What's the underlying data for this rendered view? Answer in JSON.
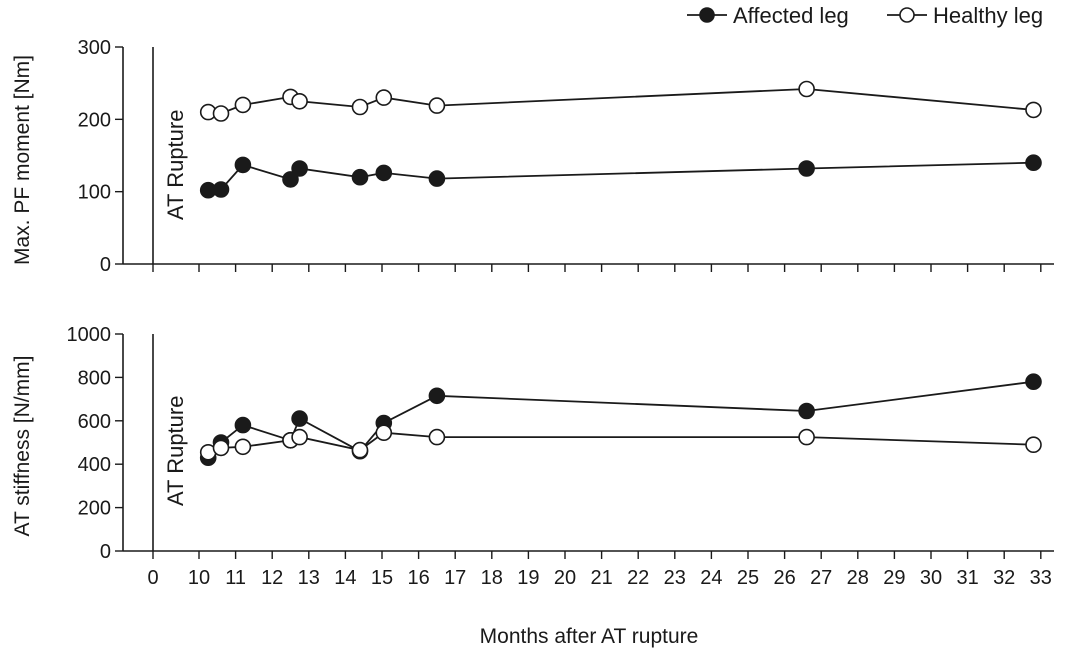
{
  "chart_data": [
    {
      "type": "line",
      "panel": "top",
      "ylabel": "Max. PF moment [Nm]",
      "xlabel": "Months after AT rupture",
      "ylim": [
        0,
        300
      ],
      "yticks": [
        "0",
        "100",
        "200",
        "300"
      ],
      "xticks": [
        "0",
        "10",
        "11",
        "12",
        "13",
        "14",
        "15",
        "16",
        "17",
        "18",
        "19",
        "20",
        "21",
        "22",
        "23",
        "24",
        "25",
        "26",
        "27",
        "28",
        "29",
        "30",
        "31",
        "32",
        "33"
      ],
      "annotation": "AT Rupture",
      "series": [
        {
          "name": "Affected leg",
          "marker": "filled",
          "x": [
            10.25,
            10.6,
            11.2,
            12.5,
            12.75,
            14.4,
            15.05,
            16.5,
            26.6,
            32.8
          ],
          "values": [
            102,
            103,
            137,
            117,
            132,
            120,
            126,
            118,
            132,
            140
          ]
        },
        {
          "name": "Healthy leg",
          "marker": "open",
          "x": [
            10.25,
            10.6,
            11.2,
            12.5,
            12.75,
            14.4,
            15.05,
            16.5,
            26.6,
            32.8
          ],
          "values": [
            210,
            208,
            220,
            231,
            225,
            217,
            230,
            219,
            242,
            213
          ]
        }
      ]
    },
    {
      "type": "line",
      "panel": "bottom",
      "ylabel": "AT stiffness [N/mm]",
      "xlabel": "Months after AT rupture",
      "ylim": [
        0,
        1000
      ],
      "yticks": [
        "0",
        "200",
        "400",
        "600",
        "800",
        "1000"
      ],
      "xticks": [
        "0",
        "10",
        "11",
        "12",
        "13",
        "14",
        "15",
        "16",
        "17",
        "18",
        "19",
        "20",
        "21",
        "22",
        "23",
        "24",
        "25",
        "26",
        "27",
        "28",
        "29",
        "30",
        "31",
        "32",
        "33"
      ],
      "annotation": "AT Rupture",
      "series": [
        {
          "name": "Affected leg",
          "marker": "filled",
          "x": [
            10.25,
            10.6,
            11.2,
            12.5,
            12.75,
            14.4,
            15.05,
            16.5,
            26.6,
            32.8
          ],
          "values": [
            430,
            500,
            580,
            510,
            610,
            460,
            590,
            715,
            645,
            780
          ]
        },
        {
          "name": "Healthy leg",
          "marker": "open",
          "x": [
            10.25,
            10.6,
            11.2,
            12.5,
            12.75,
            14.4,
            15.05,
            16.5,
            26.6,
            32.8
          ],
          "values": [
            455,
            475,
            480,
            510,
            525,
            465,
            545,
            525,
            525,
            490
          ]
        }
      ]
    }
  ],
  "legend": {
    "position": "top-right",
    "items": [
      {
        "label": "Affected leg",
        "marker": "filled"
      },
      {
        "label": "Healthy leg",
        "marker": "open"
      }
    ]
  },
  "colors": {
    "ink": "#1a1a1a",
    "open_fill": "#ffffff"
  }
}
